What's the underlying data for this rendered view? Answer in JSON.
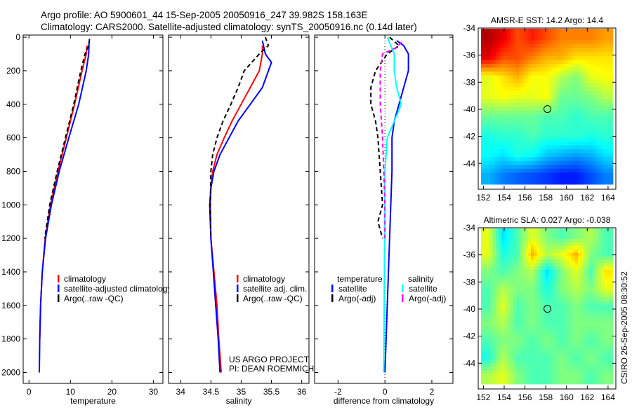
{
  "title": {
    "line1": "Argo profile: AO 5900601_44 15-Sep-2005 20050916_247 39.982S 158.163E",
    "line2": "Climatology: CARS2000. Satellite-adjusted climatology: synTS_20050916.nc (0.14d later)"
  },
  "side_label": "CSIRO 26-Sep-2005 08:30:52",
  "chart_data": [
    {
      "type": "line",
      "id": "temperature",
      "xlabel": "temperature",
      "xlim": [
        -1.4,
        32.3
      ],
      "ylim": [
        -13,
        2065
      ],
      "xticks": [
        0,
        10,
        20,
        30
      ],
      "yticks": [
        0,
        200,
        400,
        600,
        800,
        1000,
        1200,
        1400,
        1600,
        1800,
        2000
      ],
      "show_yticklabels": true,
      "legend": {
        "position": "lower-middle",
        "entries": [
          "climatology",
          "satellite-adjusted climatology",
          "Argo(..raw -QC)"
        ]
      },
      "series": [
        {
          "name": "climatology",
          "color": "#ff0000",
          "dash": false,
          "depth": [
            50,
            100,
            200,
            400,
            600,
            800,
            1000,
            1200,
            1400,
            1600,
            1800
          ],
          "values": [
            14,
            13.8,
            12.8,
            11,
            9,
            7,
            5.2,
            3.9,
            3.2,
            2.8,
            2.6
          ]
        },
        {
          "name": "satellite-adjusted climatology",
          "color": "#0000ff",
          "dash": false,
          "depth": [
            30,
            100,
            200,
            400,
            600,
            800,
            1000,
            1200,
            1400,
            1600,
            1800,
            2000
          ],
          "values": [
            14.5,
            14.4,
            13.8,
            12,
            9.6,
            7.3,
            5.4,
            4,
            3.2,
            2.8,
            2.6,
            2.5
          ]
        },
        {
          "name": "Argo(..raw -QC)",
          "color": "#000000",
          "dash": true,
          "depth": [
            10,
            50,
            100,
            200,
            400,
            600,
            800,
            1000,
            1200
          ],
          "values": [
            14.6,
            14.4,
            13.5,
            12.5,
            10.8,
            8.8,
            6.8,
            5,
            3.8
          ]
        }
      ]
    },
    {
      "type": "line",
      "id": "salinity",
      "xlabel": "salinity",
      "xlim": [
        33.8,
        36.12
      ],
      "ylim": [
        -13,
        2065
      ],
      "xticks": [
        34,
        34.5,
        35,
        35.5,
        36
      ],
      "yticks": [
        0,
        200,
        400,
        600,
        800,
        1000,
        1200,
        1400,
        1600,
        1800,
        2000
      ],
      "show_yticklabels": false,
      "legend": {
        "position": "lower-right",
        "entries": [
          "climatology",
          "satellite adj. clim.",
          "Argo(..raw -QC)"
        ]
      },
      "annotation": [
        "US ARGO PROJECT",
        "PI: DEAN ROEMMICH"
      ],
      "series": [
        {
          "name": "climatology",
          "color": "#ff0000",
          "dash": false,
          "depth": [
            50,
            100,
            200,
            300,
            400,
            500,
            600,
            700,
            800,
            900,
            1000,
            1200,
            1400,
            1600,
            1800,
            2000
          ],
          "values": [
            35.35,
            35.35,
            35.3,
            35.15,
            35.0,
            34.85,
            34.72,
            34.6,
            34.53,
            34.5,
            34.49,
            34.5,
            34.55,
            34.6,
            34.63,
            34.67
          ]
        },
        {
          "name": "satellite adj. clim.",
          "color": "#0000ff",
          "dash": false,
          "depth": [
            20,
            100,
            150,
            300,
            400,
            500,
            600,
            700,
            800,
            900,
            1000,
            1200,
            1400,
            1600,
            1800,
            2000
          ],
          "values": [
            35.35,
            35.4,
            35.5,
            35.35,
            35.15,
            34.95,
            34.8,
            34.65,
            34.55,
            34.5,
            34.48,
            34.5,
            34.54,
            34.58,
            34.62,
            34.65
          ]
        },
        {
          "name": "Argo(..raw -QC)",
          "color": "#000000",
          "dash": true,
          "depth": [
            0,
            50,
            100,
            200,
            300,
            400,
            500,
            600,
            700,
            800,
            1000,
            1200
          ],
          "values": [
            35.4,
            35.45,
            35.3,
            35.05,
            34.95,
            34.83,
            34.7,
            34.6,
            34.53,
            34.5,
            34.49,
            34.5
          ]
        }
      ]
    },
    {
      "type": "line",
      "id": "difference",
      "xlabel": "difference from climatology",
      "xlim": [
        -3,
        2.9
      ],
      "ylim": [
        -13,
        2065
      ],
      "xticks": [
        -2,
        0,
        2
      ],
      "yticks": [
        0,
        200,
        400,
        600,
        800,
        1000,
        1200,
        1400,
        1600,
        1800,
        2000
      ],
      "show_yticklabels": false,
      "legend": {
        "position": "lower",
        "headers": [
          "temperature",
          "salinity"
        ],
        "entries": [
          "satellite",
          "Argo(-adj)",
          "satellite",
          "Argo(-adj)"
        ]
      },
      "series": [
        {
          "name": "temperature satellite",
          "color": "#0000ff",
          "dash": false,
          "depth": [
            20,
            50,
            100,
            200,
            300,
            400,
            500,
            600,
            800,
            1000,
            1200,
            1600,
            2000
          ],
          "values": [
            0.5,
            0.8,
            1.0,
            1.0,
            0.8,
            0.6,
            0.4,
            0.3,
            0.3,
            0.25,
            0.2,
            0.1,
            0.0
          ]
        },
        {
          "name": "salinity satellite",
          "color": "#00ffff",
          "dash": false,
          "depth": [
            0,
            100,
            200,
            300,
            400,
            500,
            600,
            800,
            2000
          ],
          "values": [
            0.1,
            0.4,
            0.4,
            0.5,
            0.7,
            0.4,
            0.1,
            0,
            -0.05
          ]
        },
        {
          "name": "temperature Argo(-adj)",
          "color": "#000000",
          "dash": true,
          "depth": [
            0,
            50,
            100,
            200,
            300,
            400,
            500,
            600,
            800,
            1000,
            1100,
            1200
          ],
          "values": [
            0.2,
            0.6,
            0.1,
            -0.4,
            -0.6,
            -0.6,
            -0.4,
            -0.3,
            -0.2,
            -0.1,
            -0.3,
            -0.1
          ]
        },
        {
          "name": "salinity Argo(-adj)",
          "color": "#ff00ff",
          "dash": true,
          "depth": [
            30,
            60,
            100,
            200,
            400,
            600,
            800,
            1000,
            1200
          ],
          "values": [
            0.7,
            0.5,
            -0.1,
            -0.2,
            -0.2,
            -0.1,
            -0.05,
            0,
            0
          ]
        }
      ]
    },
    {
      "type": "heatmap",
      "id": "sst-map",
      "title": "AMSR-E SST: 14.2 Argo: 14.4",
      "xlim": [
        151.5,
        164.75
      ],
      "ylim": [
        -45.9,
        -34
      ],
      "xticks": [
        152,
        154,
        156,
        158,
        160,
        162,
        164
      ],
      "yticks": [
        -34,
        -36,
        -38,
        -40,
        -42,
        -44
      ],
      "marker": {
        "lon": 158.163,
        "lat": -39.982
      },
      "grid": [
        [
          0.95,
          0.9,
          0.8,
          0.85,
          0.8,
          0.75,
          0.75,
          0.75,
          0.72
        ],
        [
          0.9,
          0.8,
          0.8,
          0.75,
          0.7,
          0.7,
          0.65,
          0.65,
          0.65
        ],
        [
          0.6,
          0.65,
          0.7,
          0.62,
          0.62,
          0.55,
          0.5,
          0.6,
          0.62
        ],
        [
          0.6,
          0.62,
          0.6,
          0.6,
          0.62,
          0.48,
          0.48,
          0.5,
          0.55
        ],
        [
          0.48,
          0.48,
          0.48,
          0.48,
          0.45,
          0.45,
          0.42,
          0.45,
          0.45
        ],
        [
          0.4,
          0.42,
          0.42,
          0.45,
          0.42,
          0.42,
          0.42,
          0.4,
          0.42
        ],
        [
          0.38,
          0.35,
          0.4,
          0.38,
          0.32,
          0.3,
          0.28,
          0.3,
          0.35
        ],
        [
          0.3,
          0.25,
          0.22,
          0.2,
          0.18,
          0.15,
          0.15,
          0.2,
          0.25
        ]
      ]
    },
    {
      "type": "heatmap",
      "id": "sla-map",
      "title": "Altimetric SLA: 0.027 Argo: -0.038",
      "xlim": [
        151.5,
        164.75
      ],
      "ylim": [
        -45.9,
        -34
      ],
      "xticks": [
        152,
        154,
        156,
        158,
        160,
        162,
        164
      ],
      "yticks": [
        -34,
        -36,
        -38,
        -40,
        -42,
        -44
      ],
      "marker": {
        "lon": 158.163,
        "lat": -39.982
      },
      "grid": [
        [
          0.6,
          0.35,
          0.45,
          0.6,
          0.5,
          0.45,
          0.5,
          0.55,
          0.45
        ],
        [
          0.6,
          0.4,
          0.45,
          0.7,
          0.55,
          0.6,
          0.7,
          0.5,
          0.45
        ],
        [
          0.5,
          0.45,
          0.5,
          0.55,
          0.35,
          0.5,
          0.6,
          0.45,
          0.65
        ],
        [
          0.45,
          0.55,
          0.5,
          0.5,
          0.4,
          0.5,
          0.55,
          0.5,
          0.6
        ],
        [
          0.45,
          0.6,
          0.45,
          0.5,
          0.45,
          0.45,
          0.5,
          0.45,
          0.45
        ],
        [
          0.5,
          0.55,
          0.45,
          0.5,
          0.45,
          0.45,
          0.5,
          0.5,
          0.5
        ],
        [
          0.45,
          0.5,
          0.5,
          0.45,
          0.5,
          0.45,
          0.5,
          0.45,
          0.5
        ],
        [
          0.4,
          0.55,
          0.45,
          0.45,
          0.45,
          0.5,
          0.45,
          0.5,
          0.45
        ],
        [
          0.55,
          0.6,
          0.5,
          0.45,
          0.45,
          0.5,
          0.5,
          0.45,
          0.5
        ]
      ]
    }
  ]
}
